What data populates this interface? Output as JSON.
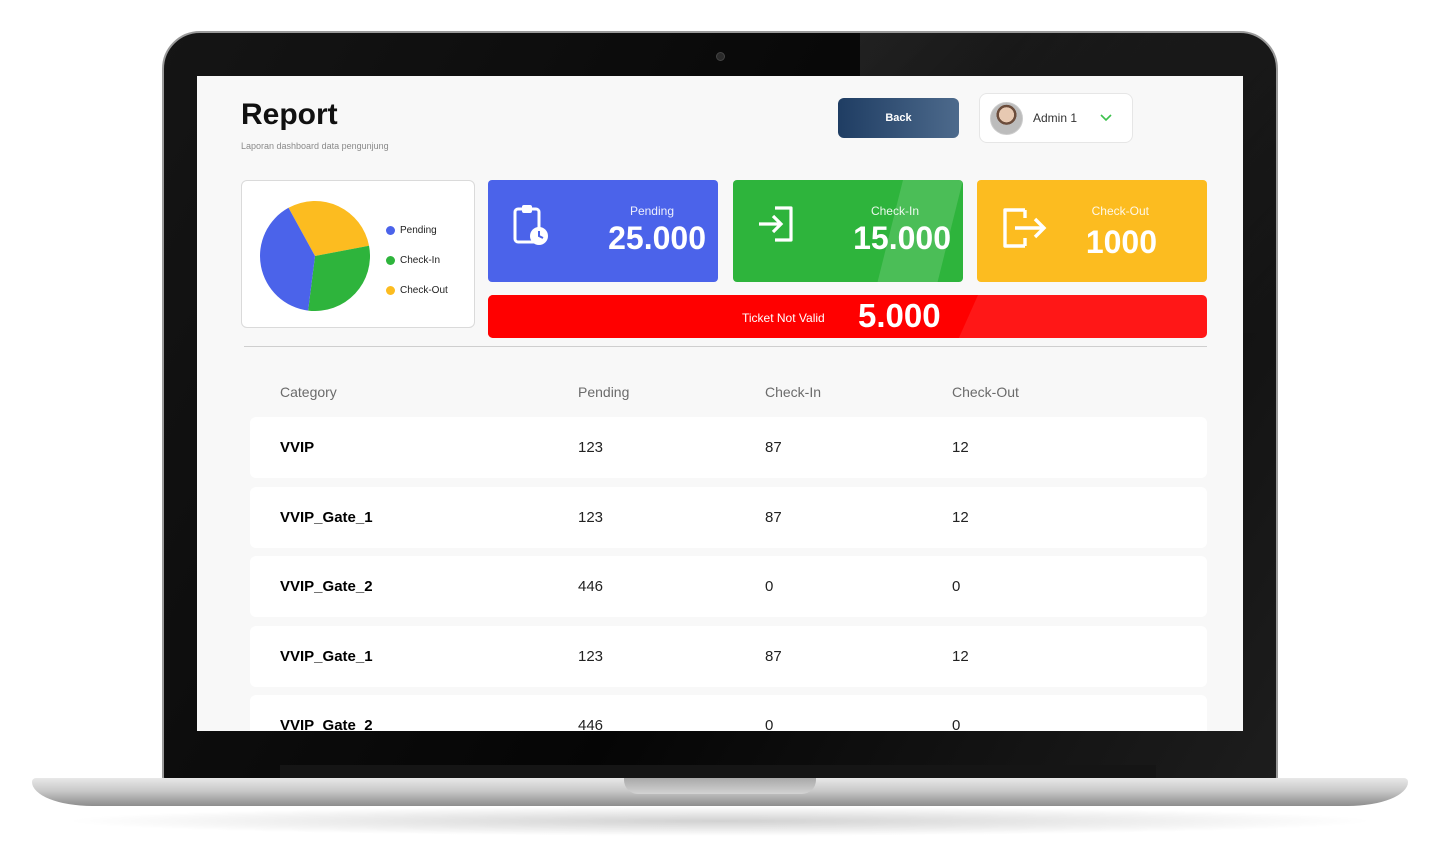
{
  "header": {
    "title": "Report",
    "subtitle": "Laporan dashboard data pengunjung",
    "back_label": "Back",
    "user_name": "Admin 1"
  },
  "legend": [
    {
      "label": "Pending",
      "color": "#4b63ea"
    },
    {
      "label": "Check-In",
      "color": "#2eb43c"
    },
    {
      "label": "Check-Out",
      "color": "#fcbc20"
    }
  ],
  "stats": {
    "pending": {
      "label": "Pending",
      "value": "25.000",
      "color": "#4b63ea"
    },
    "checkin": {
      "label": "Check-In",
      "value": "15.000",
      "color": "#2eb43c"
    },
    "checkout": {
      "label": "Check-Out",
      "value": "1000",
      "color": "#fcbc20"
    },
    "invalid": {
      "label": "Ticket Not Valid",
      "value": "5.000",
      "color": "#ff0000"
    }
  },
  "table": {
    "columns": [
      "Category",
      "Pending",
      "Check-In",
      "Check-Out"
    ],
    "rows": [
      [
        "VVIP",
        "123",
        "87",
        "12"
      ],
      [
        "VVIP_Gate_1",
        "123",
        "87",
        "12"
      ],
      [
        "VVIP_Gate_2",
        "446",
        "0",
        "0"
      ],
      [
        "VVIP_Gate_1",
        "123",
        "87",
        "12"
      ],
      [
        "VVIP_Gate_2",
        "446",
        "0",
        "0"
      ]
    ]
  },
  "chart_data": {
    "type": "pie",
    "categories": [
      "Pending",
      "Check-In",
      "Check-Out"
    ],
    "values": [
      40,
      30,
      30
    ],
    "colors": [
      "#4b63ea",
      "#2eb43c",
      "#fcbc20"
    ],
    "legend": "right"
  }
}
